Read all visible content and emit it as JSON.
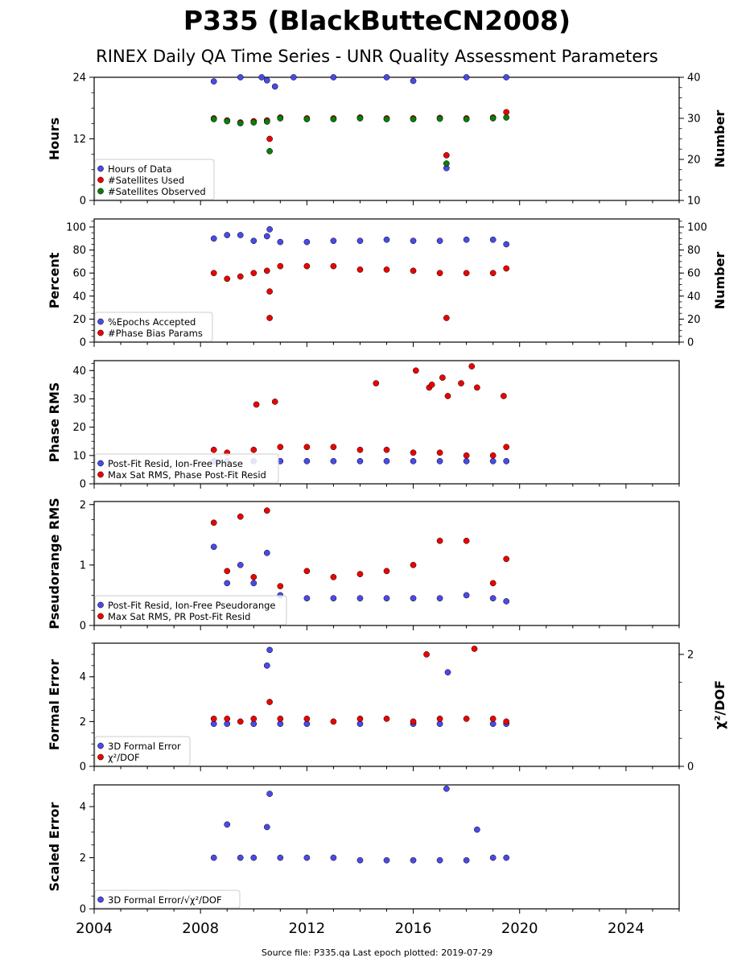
{
  "title": "P335 (BlackButteCN2008)",
  "subtitle": "RINEX Daily QA Time Series - UNR Quality Assessment Parameters",
  "footer": "Source file: P335.qa Last epoch plotted: 2019-07-29",
  "colors": {
    "blue": "#4a4ae8",
    "red": "#ee0000",
    "green": "#0a7d0a"
  },
  "chart_data": [
    {
      "type": "scatter",
      "ylabel": "Hours",
      "ylabel_right": "Number",
      "xlim": [
        2004,
        2026
      ],
      "ylim": [
        0,
        24
      ],
      "yticks": [
        0,
        12,
        24
      ],
      "ylim_right": [
        10,
        40
      ],
      "yticks_right": [
        10,
        20,
        30,
        40
      ],
      "legend_position": "lower-left",
      "series": [
        {
          "name": "Hours of Data",
          "color": "blue",
          "axis": "left",
          "x": [
            2008.5,
            2009.5,
            2010.3,
            2010.5,
            2010.8,
            2011.5,
            2013.0,
            2015.0,
            2016.0,
            2018.0,
            2019.5,
            2017.25
          ],
          "y": [
            23.2,
            24.0,
            24.0,
            23.4,
            22.2,
            24.0,
            24.0,
            24.0,
            23.3,
            24.0,
            24.0,
            6.3
          ]
        },
        {
          "name": "#Satellites Used",
          "color": "red",
          "axis": "right",
          "x": [
            2008.5,
            2009.0,
            2009.5,
            2010.0,
            2010.5,
            2011.0,
            2012.0,
            2013.0,
            2014.0,
            2015.0,
            2016.0,
            2017.0,
            2018.0,
            2019.0,
            2019.5,
            2010.6,
            2017.25
          ],
          "y": [
            30.0,
            29.5,
            29.0,
            29.3,
            29.5,
            30.2,
            30.0,
            30.0,
            30.2,
            30.0,
            30.0,
            30.1,
            30.0,
            30.2,
            31.5,
            25.0,
            21.0
          ]
        },
        {
          "name": "#Satellites Observed",
          "color": "green",
          "axis": "right",
          "x": [
            2008.5,
            2009.0,
            2009.5,
            2010.0,
            2010.5,
            2011.0,
            2012.0,
            2013.0,
            2014.0,
            2015.0,
            2016.0,
            2017.0,
            2018.0,
            2019.0,
            2019.5,
            2010.6,
            2017.25
          ],
          "y": [
            29.8,
            29.3,
            28.8,
            29.0,
            29.2,
            30.0,
            29.8,
            29.8,
            30.0,
            29.8,
            29.8,
            29.9,
            29.8,
            30.0,
            30.2,
            22.0,
            19.0
          ]
        }
      ]
    },
    {
      "type": "scatter",
      "ylabel": "Percent",
      "ylabel_right": "Number",
      "xlim": [
        2004,
        2026
      ],
      "ylim": [
        0,
        107
      ],
      "yticks": [
        0,
        20,
        40,
        60,
        80,
        100
      ],
      "ylim_right": [
        0,
        107
      ],
      "yticks_right": [
        0,
        20,
        40,
        60,
        80,
        100
      ],
      "legend_position": "lower-left",
      "series": [
        {
          "name": "%Epochs Accepted",
          "color": "blue",
          "axis": "left",
          "x": [
            2008.5,
            2009.0,
            2009.5,
            2010.0,
            2010.5,
            2010.6,
            2011.0,
            2012.0,
            2013.0,
            2014.0,
            2015.0,
            2016.0,
            2017.0,
            2018.0,
            2019.0,
            2019.5
          ],
          "y": [
            90,
            93,
            93,
            88,
            92,
            98,
            87,
            87,
            88,
            88,
            89,
            88,
            88,
            89,
            89,
            85
          ]
        },
        {
          "name": "#Phase Bias Params",
          "color": "red",
          "axis": "right",
          "x": [
            2008.5,
            2009.0,
            2009.5,
            2010.0,
            2010.5,
            2010.6,
            2011.0,
            2012.0,
            2013.0,
            2014.0,
            2015.0,
            2016.0,
            2017.0,
            2018.0,
            2019.0,
            2019.5,
            2010.6,
            2017.25
          ],
          "y": [
            60,
            55,
            57,
            60,
            62,
            44,
            66,
            66,
            66,
            63,
            63,
            62,
            60,
            60,
            60,
            64,
            21,
            21
          ]
        }
      ]
    },
    {
      "type": "scatter",
      "ylabel": "Phase RMS",
      "xlim": [
        2004,
        2026
      ],
      "ylim": [
        0,
        43.5
      ],
      "yticks": [
        0,
        10,
        20,
        30,
        40
      ],
      "legend_position": "lower-left",
      "series": [
        {
          "name": "Post-Fit Resid, Ion-Free Phase",
          "color": "blue",
          "x": [
            2008.5,
            2009.0,
            2010.0,
            2011.0,
            2012.0,
            2013.0,
            2014.0,
            2015.0,
            2016.0,
            2017.0,
            2018.0,
            2019.0,
            2019.5
          ],
          "y": [
            8,
            8,
            8,
            8,
            8,
            8,
            8,
            8,
            8,
            8,
            8,
            8,
            8
          ]
        },
        {
          "name": "Max Sat RMS, Phase Post-Fit Resid",
          "color": "red",
          "x": [
            2008.5,
            2009.0,
            2010.0,
            2011.0,
            2012.0,
            2013.0,
            2014.0,
            2015.0,
            2016.0,
            2017.0,
            2018.0,
            2019.0,
            2019.5,
            2010.1,
            2010.8,
            2014.6,
            2016.1,
            2016.6,
            2016.7,
            2017.1,
            2017.3,
            2017.8,
            2018.2,
            2018.4,
            2019.4
          ],
          "y": [
            12,
            11,
            12,
            13,
            13,
            13,
            12,
            12,
            11,
            11,
            10,
            10,
            13,
            28,
            29,
            35.5,
            40,
            34,
            35,
            37.5,
            31,
            35.5,
            41.5,
            34,
            31
          ]
        }
      ]
    },
    {
      "type": "scatter",
      "ylabel": "Pseudorange RMS",
      "xlim": [
        2004,
        2026
      ],
      "ylim": [
        0,
        2.05
      ],
      "yticks": [
        0,
        1,
        2
      ],
      "legend_position": "lower-left",
      "series": [
        {
          "name": "Post-Fit Resid, Ion-Free Pseudorange",
          "color": "blue",
          "x": [
            2008.5,
            2009.0,
            2009.5,
            2010.0,
            2010.5,
            2011.0,
            2012.0,
            2013.0,
            2014.0,
            2015.0,
            2016.0,
            2017.0,
            2018.0,
            2019.0,
            2019.5
          ],
          "y": [
            1.3,
            0.7,
            1.0,
            0.7,
            1.2,
            0.5,
            0.45,
            0.45,
            0.45,
            0.45,
            0.45,
            0.45,
            0.5,
            0.45,
            0.4
          ]
        },
        {
          "name": "Max Sat RMS, PR Post-Fit Resid",
          "color": "red",
          "x": [
            2008.5,
            2009.0,
            2009.5,
            2010.0,
            2010.5,
            2011.0,
            2012.0,
            2013.0,
            2014.0,
            2015.0,
            2016.0,
            2017.0,
            2018.0,
            2019.0,
            2019.5
          ],
          "y": [
            1.7,
            0.9,
            1.8,
            0.8,
            1.9,
            0.65,
            0.9,
            0.8,
            0.85,
            0.9,
            1.0,
            1.4,
            1.4,
            0.7,
            1.1
          ]
        }
      ]
    },
    {
      "type": "scatter",
      "ylabel": "Formal Error",
      "ylabel_right": "χ²/DOF",
      "xlim": [
        2004,
        2026
      ],
      "ylim": [
        0,
        5.5
      ],
      "yticks": [
        0,
        2,
        4
      ],
      "ylim_right": [
        0,
        2.2
      ],
      "yticks_right": [
        0,
        2
      ],
      "legend_position": "lower-left",
      "series": [
        {
          "name": "3D Formal Error",
          "color": "blue",
          "axis": "left",
          "x": [
            2008.5,
            2009.0,
            2010.0,
            2010.5,
            2010.6,
            2011.0,
            2012.0,
            2014.0,
            2016.0,
            2017.0,
            2017.3,
            2019.0,
            2019.5
          ],
          "y": [
            1.9,
            1.9,
            1.9,
            4.5,
            5.2,
            1.9,
            1.9,
            1.9,
            1.9,
            1.9,
            4.2,
            1.9,
            1.9
          ]
        },
        {
          "name": "χ²/DOF",
          "color": "red",
          "axis": "right",
          "x": [
            2008.5,
            2009.0,
            2009.5,
            2010.0,
            2010.6,
            2011.0,
            2012.0,
            2013.0,
            2014.0,
            2015.0,
            2016.0,
            2016.5,
            2017.0,
            2018.0,
            2018.3,
            2019.0,
            2019.5
          ],
          "y": [
            0.85,
            0.85,
            0.8,
            0.85,
            1.15,
            0.85,
            0.85,
            0.8,
            0.85,
            0.85,
            0.8,
            2.0,
            0.85,
            0.85,
            2.1,
            0.85,
            0.8
          ]
        }
      ]
    },
    {
      "type": "scatter",
      "ylabel": "Scaled Error",
      "xlim": [
        2004,
        2026
      ],
      "ylim": [
        0,
        4.85
      ],
      "yticks": [
        0,
        2,
        4
      ],
      "xticks": [
        2004,
        2008,
        2012,
        2016,
        2020,
        2024
      ],
      "legend_position": "lower-left",
      "series": [
        {
          "name": "3D Formal Error/√χ²/DOF",
          "color": "blue",
          "x": [
            2008.5,
            2009.0,
            2009.5,
            2010.0,
            2010.5,
            2010.6,
            2011.0,
            2012.0,
            2013.0,
            2014.0,
            2015.0,
            2016.0,
            2017.0,
            2017.25,
            2018.0,
            2018.4,
            2019.0,
            2019.5
          ],
          "y": [
            2.0,
            3.3,
            2.0,
            2.0,
            3.2,
            4.5,
            2.0,
            2.0,
            2.0,
            1.9,
            1.9,
            1.9,
            1.9,
            4.7,
            1.9,
            3.1,
            2.0,
            2.0
          ]
        }
      ]
    }
  ]
}
